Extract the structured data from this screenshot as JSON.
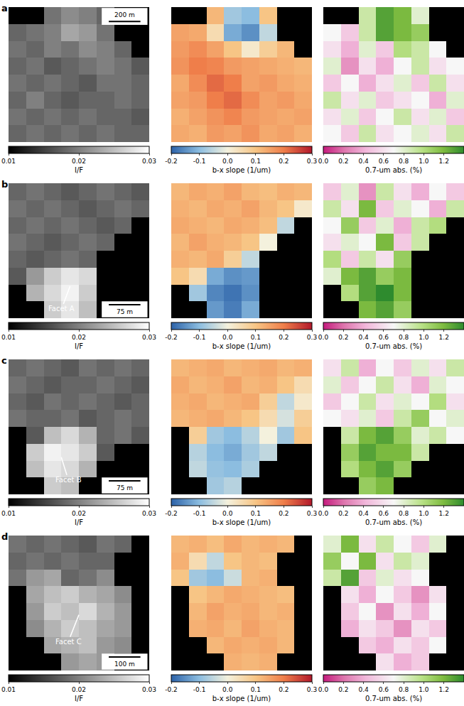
{
  "chart_data": [
    {
      "type": "heatmap",
      "panel_label": "a",
      "scale_bar": "200 m",
      "colorbar_title": "I/F",
      "zlim": [
        0.01,
        0.03
      ],
      "zticks": [
        0.01,
        0.02,
        0.03
      ],
      "tick_labels": false,
      "cells": [
        [
          null,
          null,
          0.019,
          0.021,
          0.02,
          0.018,
          null,
          null
        ],
        [
          0.018,
          0.019,
          0.02,
          0.023,
          0.022,
          0.019,
          null,
          null
        ],
        [
          0.019,
          0.018,
          0.02,
          0.019,
          0.021,
          0.02,
          0.018,
          null
        ],
        [
          0.018,
          0.019,
          0.017,
          0.018,
          0.019,
          0.02,
          0.019,
          0.017
        ],
        [
          0.019,
          0.018,
          0.019,
          0.018,
          0.017,
          0.019,
          0.019,
          0.018
        ],
        [
          0.018,
          0.02,
          0.018,
          0.017,
          0.018,
          0.018,
          0.019,
          0.018
        ],
        [
          0.019,
          0.018,
          0.019,
          0.018,
          0.019,
          0.018,
          0.018,
          0.017
        ],
        [
          0.018,
          0.019,
          0.018,
          0.019,
          0.018,
          0.019,
          0.018,
          0.018
        ]
      ]
    },
    {
      "type": "heatmap",
      "colorbar_title": "b-x slope (1/um)",
      "zlim": [
        -0.2,
        0.3
      ],
      "zticks": [
        -0.2,
        -0.1,
        {
          "value": 0,
          "label": "0.0"
        },
        0.1,
        0.2,
        0.3
      ],
      "tick_labels": false,
      "cells": [
        [
          null,
          null,
          0.12,
          -0.08,
          -0.1,
          0.1,
          null,
          null
        ],
        [
          0.15,
          0.14,
          0.05,
          -0.12,
          -0.15,
          -0.05,
          null,
          null
        ],
        [
          0.16,
          0.18,
          0.15,
          0.1,
          0.02,
          0.08,
          0.12,
          null
        ],
        [
          0.17,
          0.2,
          0.19,
          0.16,
          0.15,
          0.14,
          0.13,
          0.12
        ],
        [
          0.14,
          0.18,
          0.22,
          0.2,
          0.15,
          0.16,
          0.14,
          0.13
        ],
        [
          0.15,
          0.16,
          0.2,
          0.22,
          0.18,
          0.15,
          0.16,
          0.14
        ],
        [
          0.13,
          0.15,
          0.17,
          0.19,
          0.16,
          0.15,
          0.14,
          0.15
        ],
        [
          0.14,
          0.13,
          0.16,
          0.15,
          0.17,
          0.14,
          0.15,
          0.13
        ]
      ]
    },
    {
      "type": "heatmap",
      "colorbar_title": "0.7-um abs. (%)",
      "zlim": [
        0,
        1.4
      ],
      "zticks": [
        {
          "value": 0,
          "label": "0.0"
        },
        0.2,
        0.4,
        0.6,
        0.8,
        {
          "value": 1,
          "label": "1.0"
        },
        1.2,
        1.4
      ],
      "tick_labels": false,
      "cells": [
        [
          null,
          null,
          0.9,
          1.3,
          1.2,
          0.8,
          null,
          null
        ],
        [
          0.7,
          0.5,
          0.9,
          1.3,
          1.2,
          1.1,
          null,
          null
        ],
        [
          0.6,
          0.4,
          0.8,
          0.5,
          1.0,
          0.9,
          0.7,
          null
        ],
        [
          0.8,
          0.3,
          0.6,
          0.4,
          0.7,
          0.9,
          0.6,
          0.7
        ],
        [
          0.5,
          0.7,
          0.4,
          0.6,
          0.8,
          0.5,
          0.9,
          0.6
        ],
        [
          0.9,
          0.6,
          0.8,
          0.5,
          0.6,
          0.7,
          0.4,
          0.8
        ],
        [
          0.6,
          0.8,
          0.5,
          0.7,
          0.9,
          0.6,
          0.8,
          0.5
        ],
        [
          0.7,
          0.5,
          0.9,
          0.6,
          0.7,
          0.8,
          0.6,
          0.9
        ]
      ]
    },
    {
      "type": "heatmap",
      "panel_label": "b",
      "scale_bar": "75 m",
      "annotation": "Facet A",
      "colorbar_title": "I/F",
      "zlim": [
        0.01,
        0.03
      ],
      "zticks": [
        0.01,
        0.02,
        0.03
      ],
      "tick_labels": false,
      "cells": [
        [
          0.018,
          0.019,
          0.018,
          0.017,
          0.018,
          0.019,
          0.018,
          0.017
        ],
        [
          0.019,
          0.018,
          0.019,
          0.018,
          0.017,
          0.018,
          0.019,
          0.018
        ],
        [
          0.018,
          0.019,
          0.018,
          0.019,
          0.018,
          0.017,
          0.018,
          null
        ],
        [
          0.019,
          0.018,
          0.017,
          0.018,
          0.019,
          0.018,
          null,
          null
        ],
        [
          0.018,
          0.017,
          0.018,
          0.019,
          0.018,
          null,
          null,
          null
        ],
        [
          0.017,
          0.022,
          0.026,
          0.028,
          0.027,
          null,
          null,
          null
        ],
        [
          null,
          0.024,
          0.027,
          0.029,
          0.026,
          null,
          null,
          null
        ],
        [
          null,
          null,
          0.026,
          0.028,
          0.025,
          null,
          null,
          null
        ]
      ]
    },
    {
      "type": "heatmap",
      "colorbar_title": "b-x slope (1/um)",
      "zlim": [
        -0.2,
        0.3
      ],
      "zticks": [
        -0.2,
        -0.1,
        {
          "value": 0,
          "label": "0.0"
        },
        0.1,
        0.2,
        0.3
      ],
      "tick_labels": false,
      "cells": [
        [
          0.12,
          0.14,
          0.13,
          0.15,
          0.12,
          0.11,
          0.13,
          0.12
        ],
        [
          0.13,
          0.12,
          0.14,
          0.13,
          0.15,
          0.12,
          0.1,
          0.02
        ],
        [
          0.14,
          0.13,
          0.12,
          0.14,
          0.13,
          0.11,
          -0.05,
          null
        ],
        [
          0.12,
          0.15,
          0.13,
          0.12,
          0.1,
          0.0,
          null,
          null
        ],
        [
          0.13,
          0.12,
          0.14,
          0.08,
          -0.05,
          null,
          null,
          null
        ],
        [
          0.1,
          0.05,
          -0.12,
          -0.15,
          -0.14,
          null,
          null,
          null
        ],
        [
          null,
          -0.08,
          -0.16,
          -0.18,
          -0.15,
          null,
          null,
          null
        ],
        [
          null,
          null,
          -0.14,
          -0.17,
          -0.12,
          null,
          null,
          null
        ]
      ]
    },
    {
      "type": "heatmap",
      "colorbar_title": "0.7-um abs. (%)",
      "zlim": [
        0,
        1.4
      ],
      "zticks": [
        {
          "value": 0,
          "label": "0.0"
        },
        0.2,
        0.4,
        0.6,
        0.8,
        {
          "value": 1,
          "label": "1.0"
        },
        1.2,
        1.4
      ],
      "tick_labels": false,
      "cells": [
        [
          0.5,
          0.8,
          0.3,
          0.9,
          0.6,
          0.4,
          0.7,
          0.5
        ],
        [
          0.9,
          0.6,
          1.2,
          0.5,
          0.8,
          0.7,
          0.4,
          0.9
        ],
        [
          0.7,
          1.1,
          0.5,
          0.8,
          0.4,
          0.9,
          1.0,
          null
        ],
        [
          0.6,
          0.8,
          0.7,
          1.2,
          0.5,
          0.9,
          null,
          null
        ],
        [
          1.0,
          0.5,
          0.9,
          0.6,
          1.1,
          null,
          null,
          null
        ],
        [
          0.8,
          1.2,
          1.3,
          1.1,
          1.2,
          null,
          null,
          null
        ],
        [
          null,
          1.0,
          1.3,
          1.4,
          1.2,
          null,
          null,
          null
        ],
        [
          null,
          null,
          1.2,
          1.3,
          1.1,
          null,
          null,
          null
        ]
      ]
    },
    {
      "type": "heatmap",
      "panel_label": "c",
      "scale_bar": "75 m",
      "annotation": "Facet B",
      "colorbar_title": "I/F",
      "zlim": [
        0.01,
        0.03
      ],
      "zticks": [
        0.01,
        0.02,
        0.03
      ],
      "tick_labels": false,
      "cells": [
        [
          0.018,
          0.019,
          0.018,
          0.017,
          0.019,
          0.018,
          0.019,
          0.018
        ],
        [
          0.019,
          0.018,
          0.017,
          0.018,
          0.018,
          0.019,
          0.018,
          0.017
        ],
        [
          0.018,
          0.017,
          0.019,
          0.018,
          0.019,
          0.018,
          0.017,
          0.018
        ],
        [
          0.019,
          0.018,
          0.018,
          0.019,
          0.017,
          0.018,
          0.019,
          0.018
        ],
        [
          null,
          0.017,
          0.025,
          0.027,
          0.024,
          0.018,
          0.019,
          0.017
        ],
        [
          null,
          0.026,
          0.029,
          0.028,
          0.026,
          0.017,
          null,
          null
        ],
        [
          null,
          0.025,
          0.028,
          0.027,
          0.024,
          null,
          null,
          null
        ],
        [
          null,
          null,
          0.026,
          0.025,
          null,
          null,
          null,
          null
        ]
      ]
    },
    {
      "type": "heatmap",
      "colorbar_title": "b-x slope (1/um)",
      "zlim": [
        -0.2,
        0.3
      ],
      "zticks": [
        -0.2,
        -0.1,
        {
          "value": 0,
          "label": "0.0"
        },
        0.1,
        0.2,
        0.3
      ],
      "tick_labels": false,
      "cells": [
        [
          0.12,
          0.13,
          0.14,
          0.12,
          0.13,
          0.14,
          0.12,
          0.13
        ],
        [
          0.14,
          0.12,
          0.13,
          0.15,
          0.12,
          0.13,
          0.1,
          0.05
        ],
        [
          0.13,
          0.14,
          0.12,
          0.13,
          0.14,
          0.08,
          -0.05,
          0.02
        ],
        [
          0.12,
          0.13,
          0.14,
          0.12,
          0.1,
          0.05,
          -0.03,
          0.08
        ],
        [
          null,
          0.08,
          -0.08,
          -0.1,
          -0.06,
          0.0,
          -0.08,
          0.1
        ],
        [
          null,
          -0.06,
          -0.1,
          -0.12,
          -0.08,
          -0.05,
          null,
          null
        ],
        [
          null,
          -0.05,
          -0.09,
          -0.1,
          -0.07,
          null,
          null,
          null
        ],
        [
          null,
          null,
          -0.08,
          -0.06,
          null,
          null,
          null,
          null
        ]
      ]
    },
    {
      "type": "heatmap",
      "colorbar_title": "0.7-um abs. (%)",
      "zlim": [
        0,
        1.4
      ],
      "zticks": [
        {
          "value": 0,
          "label": "0.0"
        },
        0.2,
        0.4,
        0.6,
        0.8,
        {
          "value": 1,
          "label": "1.0"
        },
        1.2,
        1.4
      ],
      "tick_labels": false,
      "cells": [
        [
          0.6,
          0.9,
          0.4,
          0.7,
          0.5,
          0.8,
          0.6,
          0.9
        ],
        [
          0.8,
          0.5,
          0.7,
          0.9,
          0.6,
          0.4,
          0.8,
          0.7
        ],
        [
          0.5,
          0.7,
          0.9,
          0.6,
          0.8,
          0.7,
          1.0,
          0.6
        ],
        [
          0.7,
          0.6,
          0.8,
          0.5,
          0.9,
          1.1,
          0.7,
          0.8
        ],
        [
          null,
          0.9,
          1.2,
          1.3,
          1.1,
          0.8,
          0.9,
          0.7
        ],
        [
          null,
          1.1,
          1.3,
          1.2,
          1.2,
          0.9,
          null,
          null
        ],
        [
          null,
          1.0,
          1.2,
          1.3,
          1.1,
          null,
          null,
          null
        ],
        [
          null,
          null,
          1.1,
          1.2,
          null,
          null,
          null,
          null
        ]
      ]
    },
    {
      "type": "heatmap",
      "panel_label": "d",
      "scale_bar": "100 m",
      "annotation": "Facet C",
      "colorbar_title": "I/F",
      "zlim": [
        0.01,
        0.03
      ],
      "zticks": [
        0.01,
        0.02,
        0.03
      ],
      "tick_labels": false,
      "cells": [
        [
          0.019,
          0.018,
          0.019,
          0.018,
          0.017,
          0.019,
          0.018,
          null
        ],
        [
          0.018,
          0.019,
          0.018,
          0.019,
          0.018,
          0.018,
          null,
          null
        ],
        [
          0.019,
          0.022,
          0.023,
          0.018,
          0.019,
          0.021,
          null,
          null
        ],
        [
          null,
          0.023,
          0.025,
          0.026,
          0.024,
          0.023,
          0.021,
          null
        ],
        [
          null,
          0.022,
          0.026,
          0.025,
          0.027,
          0.024,
          0.022,
          null
        ],
        [
          null,
          0.021,
          0.024,
          0.026,
          0.025,
          0.023,
          0.022,
          null
        ],
        [
          null,
          null,
          0.023,
          0.024,
          0.025,
          0.022,
          0.021,
          null
        ],
        [
          null,
          null,
          null,
          0.022,
          0.023,
          0.022,
          null,
          null
        ]
      ]
    },
    {
      "type": "heatmap",
      "colorbar_title": "b-x slope (1/um)",
      "zlim": [
        -0.2,
        0.3
      ],
      "zticks": [
        -0.2,
        -0.1,
        {
          "value": 0,
          "label": "0.0"
        },
        0.1,
        0.2,
        0.3
      ],
      "tick_labels": false,
      "cells": [
        [
          0.12,
          0.13,
          0.11,
          0.14,
          0.12,
          0.13,
          0.12,
          null
        ],
        [
          0.13,
          0.05,
          -0.05,
          0.1,
          0.12,
          0.11,
          null,
          null
        ],
        [
          0.1,
          -0.08,
          -0.1,
          -0.04,
          0.12,
          0.13,
          null,
          null
        ],
        [
          null,
          0.1,
          0.12,
          0.14,
          0.13,
          0.12,
          0.11,
          null
        ],
        [
          null,
          0.12,
          0.15,
          0.13,
          0.14,
          0.12,
          0.13,
          null
        ],
        [
          null,
          0.13,
          0.14,
          0.12,
          0.15,
          0.13,
          0.12,
          null
        ],
        [
          null,
          null,
          0.12,
          0.14,
          0.13,
          0.14,
          0.12,
          null
        ],
        [
          null,
          null,
          null,
          0.13,
          0.12,
          0.13,
          null,
          null
        ]
      ]
    },
    {
      "type": "heatmap",
      "colorbar_title": "0.7-um abs. (%)",
      "zlim": [
        0,
        1.4
      ],
      "zticks": [
        {
          "value": 0,
          "label": "0.0"
        },
        0.2,
        0.4,
        0.6,
        0.8,
        {
          "value": 1,
          "label": "1.0"
        },
        1.2,
        1.4
      ],
      "tick_labels": false,
      "cells": [
        [
          0.8,
          1.2,
          0.6,
          0.9,
          0.7,
          0.5,
          0.8,
          null
        ],
        [
          1.1,
          0.7,
          1.2,
          0.6,
          0.9,
          0.8,
          null,
          null
        ],
        [
          0.9,
          1.3,
          0.5,
          0.8,
          0.6,
          0.7,
          null,
          null
        ],
        [
          null,
          0.6,
          0.4,
          0.7,
          0.5,
          0.3,
          0.6,
          null
        ],
        [
          null,
          0.5,
          0.7,
          0.3,
          0.6,
          0.4,
          0.7,
          null
        ],
        [
          null,
          0.4,
          0.6,
          0.5,
          0.3,
          0.6,
          0.5,
          null
        ],
        [
          null,
          null,
          0.5,
          0.4,
          0.6,
          0.5,
          0.7,
          null
        ],
        [
          null,
          null,
          null,
          0.6,
          0.4,
          0.5,
          null,
          null
        ]
      ]
    }
  ]
}
